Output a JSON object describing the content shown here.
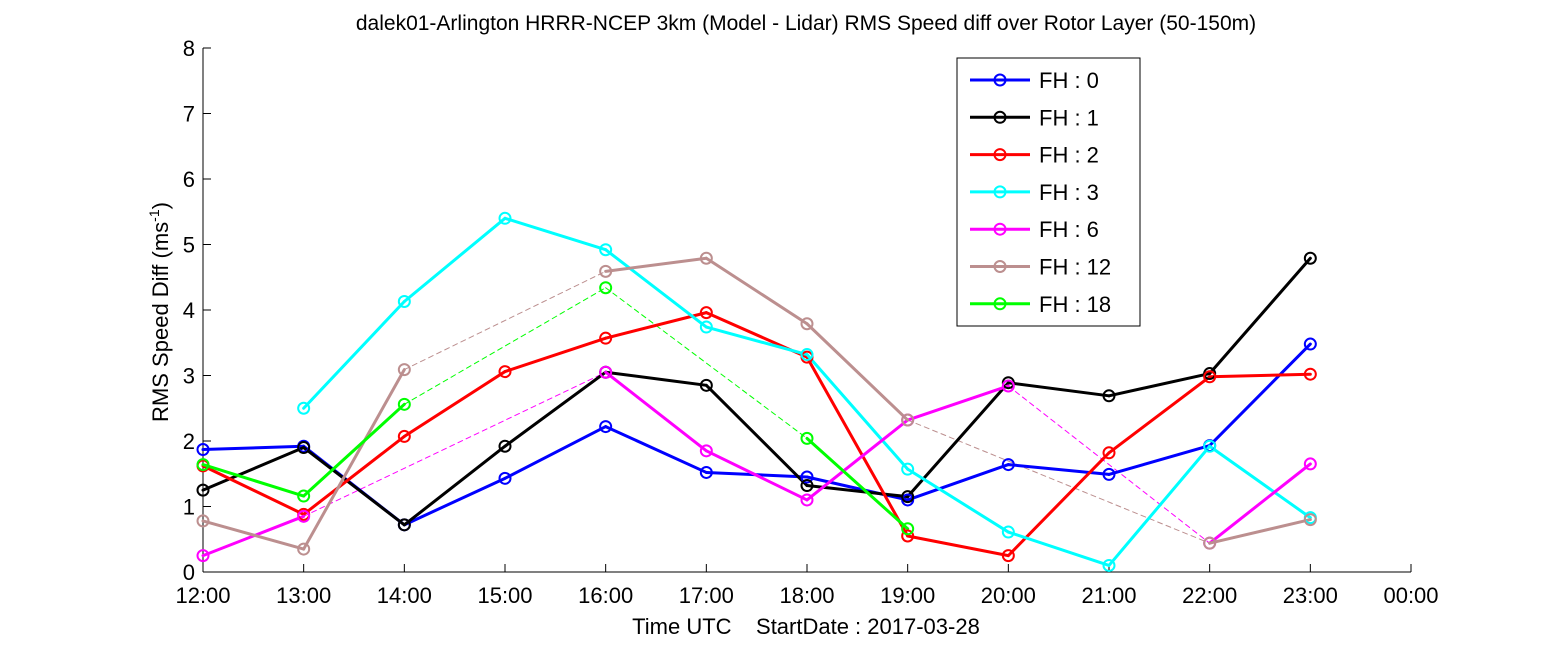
{
  "chart_data": {
    "type": "line",
    "title": "dalek01-Arlington HRRR-NCEP 3km (Model - Lidar) RMS Speed diff over Rotor Layer (50-150m)",
    "xlabel": "Time UTC    StartDate : 2017-03-28",
    "ylabel_main": "RMS Speed Diff (ms",
    "ylabel_sup": "-1",
    "ylabel_close": ")",
    "x_ticks": [
      "12:00",
      "13:00",
      "14:00",
      "15:00",
      "16:00",
      "17:00",
      "18:00",
      "19:00",
      "20:00",
      "21:00",
      "22:00",
      "23:00",
      "00:00"
    ],
    "y_ticks": [
      "0",
      "1",
      "2",
      "3",
      "4",
      "5",
      "6",
      "7",
      "8"
    ],
    "xlim": [
      "12:00",
      "00:00"
    ],
    "ylim": [
      0,
      8
    ],
    "grid": false,
    "legend_position": "top-right",
    "series": [
      {
        "name": "FH : 0",
        "color": "#0000ff",
        "values": [
          1.87,
          1.92,
          0.72,
          1.43,
          2.22,
          1.52,
          1.45,
          1.1,
          1.64,
          1.49,
          1.93,
          3.48
        ]
      },
      {
        "name": "FH : 1",
        "color": "#000000",
        "values": [
          1.25,
          1.9,
          0.72,
          1.92,
          3.05,
          2.85,
          1.32,
          1.15,
          2.89,
          2.69,
          3.03,
          4.79
        ]
      },
      {
        "name": "FH : 2",
        "color": "#ff0000",
        "values": [
          1.62,
          0.88,
          2.07,
          3.06,
          3.57,
          3.96,
          3.28,
          0.55,
          0.25,
          1.82,
          2.98,
          3.02
        ]
      },
      {
        "name": "FH : 3",
        "color": "#00ffff",
        "values": [
          null,
          2.5,
          4.13,
          5.4,
          4.92,
          3.74,
          3.32,
          1.57,
          0.61,
          0.1,
          1.92,
          0.83
        ]
      },
      {
        "name": "FH : 6",
        "color": "#ff00ff",
        "values": [
          0.25,
          0.85,
          null,
          null,
          3.05,
          1.85,
          1.1,
          2.32,
          2.84,
          null,
          0.44,
          1.65
        ]
      },
      {
        "name": "FH : 12",
        "color": "#bc8f8f",
        "values": [
          0.78,
          0.35,
          3.09,
          null,
          4.59,
          4.79,
          3.79,
          2.32,
          null,
          null,
          0.44,
          0.8
        ]
      },
      {
        "name": "FH : 18",
        "color": "#00ff00",
        "values": [
          1.64,
          1.16,
          2.56,
          null,
          4.34,
          null,
          2.04,
          0.66,
          null,
          null,
          null,
          null
        ]
      }
    ]
  }
}
